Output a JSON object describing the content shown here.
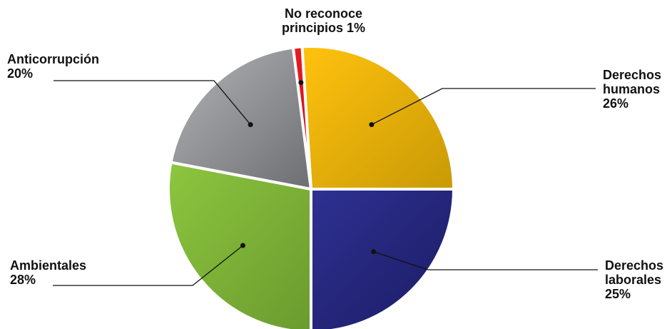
{
  "chart_data": {
    "type": "pie",
    "start_angle_deg": -3.6,
    "direction": "clockwise",
    "slices": [
      {
        "name": "Derechos humanos",
        "value": 26,
        "lines": [
          "Derechos",
          "humanos",
          "26%"
        ],
        "colors": [
          "#FFC20E",
          "#C99A06"
        ]
      },
      {
        "name": "Derechos laborales",
        "value": 25,
        "lines": [
          "Derechos",
          "laborales",
          "25%"
        ],
        "colors": [
          "#2E3192",
          "#1B1B63"
        ]
      },
      {
        "name": "Ambientales",
        "value": 28,
        "lines": [
          "Ambientales",
          "28%"
        ],
        "colors": [
          "#8DC63F",
          "#6A9A2E"
        ]
      },
      {
        "name": "Anticorrupción",
        "value": 20,
        "lines": [
          "Anticorrupción",
          "20%"
        ],
        "colors": [
          "#B3B5B8",
          "#6D6E71"
        ]
      },
      {
        "name": "No reconoce principios",
        "value": 1,
        "lines": [
          "No reconoce",
          "principios 1%"
        ],
        "colors": [
          "#ED1C24",
          "#C1121A"
        ]
      }
    ]
  }
}
